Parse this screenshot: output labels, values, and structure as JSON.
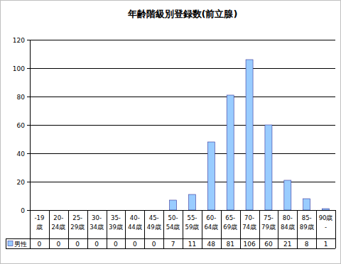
{
  "chart_data": {
    "type": "bar",
    "title": "年齢階級別登録数(前立腺)",
    "categories": [
      "-19歳",
      "20-24歳",
      "25-29歳",
      "30-34歳",
      "35-39歳",
      "40-44歳",
      "45-49歳",
      "50-54歳",
      "55-59歳",
      "60-64歳",
      "65-69歳",
      "70-74歳",
      "75-79歳",
      "80-84歳",
      "85-89歳",
      "90歳-"
    ],
    "series": [
      {
        "name": "男性",
        "color": "#99ccff",
        "values": [
          0,
          0,
          0,
          0,
          0,
          0,
          0,
          7,
          11,
          48,
          81,
          106,
          60,
          21,
          8,
          1
        ]
      }
    ],
    "ylim": [
      0,
      120
    ],
    "yticks": [
      0,
      20,
      40,
      60,
      80,
      100,
      120
    ],
    "grid": true
  }
}
